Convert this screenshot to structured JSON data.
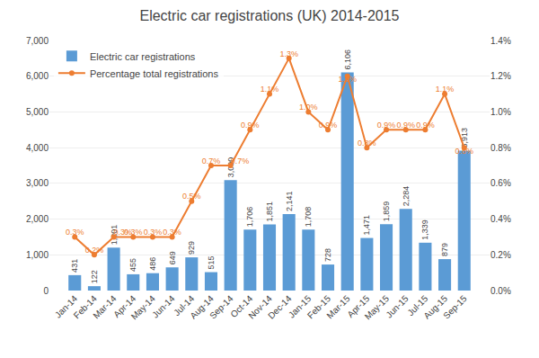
{
  "chart_data": {
    "type": "bar",
    "title": "Electric car registrations (UK) 2014-2015",
    "categories": [
      "Jan-14",
      "Feb-14",
      "Mar-14",
      "Apr-14",
      "May-14",
      "Jun-14",
      "Jul-14",
      "Aug-14",
      "Sep-14",
      "Oct-14",
      "Nov-14",
      "Dec-14",
      "Jan-15",
      "Feb-15",
      "Mar-15",
      "Apr-15",
      "May-15",
      "Jun-15",
      "Jul-15",
      "Aug-15",
      "Sep-15"
    ],
    "series": [
      {
        "name": "Electric car registrations",
        "type": "bar",
        "color": "#5B9BD5",
        "values": [
          431,
          122,
          1201,
          455,
          486,
          649,
          929,
          515,
          3090,
          1706,
          1851,
          2141,
          1708,
          728,
          6106,
          1471,
          1859,
          2284,
          1339,
          879,
          3913
        ],
        "value_labels": [
          "431",
          "122",
          "1,201",
          "455",
          "486",
          "649",
          "929",
          "515",
          "3,090",
          "1,706",
          "1,851",
          "2,141",
          "1,708",
          "728",
          "6,106",
          "1,471",
          "1,859",
          "2,284",
          "1,339",
          "879",
          "3,913"
        ]
      },
      {
        "name": "Percentage total registrations",
        "type": "line",
        "axis": "y2",
        "color": "#ED7D31",
        "marker": "circle",
        "values": [
          0.3,
          0.2,
          0.3,
          0.3,
          0.3,
          0.3,
          0.5,
          0.7,
          0.7,
          0.9,
          1.1,
          1.3,
          1.0,
          0.9,
          1.2,
          0.8,
          0.9,
          0.9,
          0.9,
          1.1,
          0.8
        ],
        "value_labels": [
          "0.3%",
          "0.2%",
          "0.3%",
          "0.3%",
          "0.3%",
          "0.3%",
          "0.5%",
          "0.7%",
          "0.7%",
          "0.9%",
          "1.1%",
          "1.3%",
          "1.0%",
          "0.9%",
          "1.2%",
          "0.8%",
          "0.9%",
          "0.9%",
          "0.9%",
          "1.1%",
          "0.8%"
        ]
      }
    ],
    "ylim": [
      0,
      7000
    ],
    "yticks": [
      0,
      {
        "value": 1000,
        "label": "1,000"
      },
      {
        "value": 2000,
        "label": "2,000"
      },
      {
        "value": 3000,
        "label": "3,000"
      },
      {
        "value": 4000,
        "label": "4,000"
      },
      {
        "value": 5000,
        "label": "5,000"
      },
      {
        "value": 6000,
        "label": "6,000"
      },
      {
        "value": 7000,
        "label": "7,000"
      }
    ],
    "y2lim": [
      0,
      1.4
    ],
    "y2ticks": [
      {
        "value": 0.0,
        "label": "0.0%"
      },
      {
        "value": 0.2,
        "label": "0.2%"
      },
      {
        "value": 0.4,
        "label": "0.4%"
      },
      {
        "value": 0.6,
        "label": "0.6%"
      },
      {
        "value": 0.8,
        "label": "0.8%"
      },
      {
        "value": 1.0,
        "label": "1.0%"
      },
      {
        "value": 1.2,
        "label": "1.2%"
      },
      {
        "value": 1.4,
        "label": "1.4%"
      }
    ],
    "grid": true,
    "legend": "upper left",
    "data_labels": true
  }
}
